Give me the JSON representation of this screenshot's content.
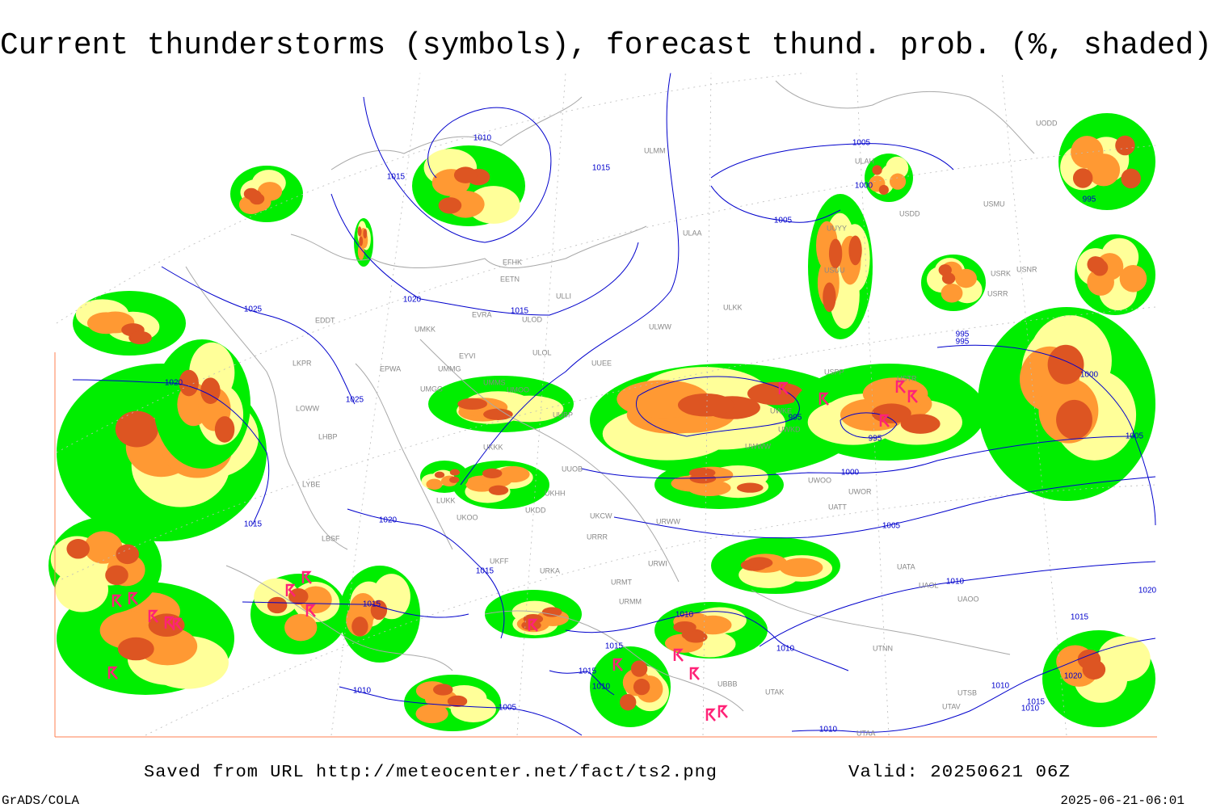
{
  "header": {
    "title": "Current thunderstorms (symbols), forecast thund. prob. (%, shaded)"
  },
  "isobars": [
    "1010",
    "1015",
    "1015",
    "1005",
    "1000",
    "1005",
    "995",
    "1025",
    "1020",
    "1015",
    "995",
    "995",
    "1020",
    "1025",
    "1000",
    "995",
    "995",
    "1005",
    "1000",
    "1020",
    "1015",
    "1005",
    "1015",
    "1010",
    "1015",
    "1010",
    "1015",
    "1015",
    "1010",
    "1020",
    "1015",
    "1010",
    "1010",
    "1010",
    "1015",
    "1010",
    "1005",
    "1010",
    "1020"
  ],
  "stations": [
    "ULMM",
    "ULAA",
    "EFHK",
    "EETN",
    "EVRA",
    "ULOD",
    "ULLI",
    "ULWW",
    "ULOL",
    "EYVI",
    "UMKK",
    "EPWA",
    "UMMG",
    "EDDT",
    "LKPR",
    "UMMS",
    "UMOO",
    "UUEE",
    "UUBP",
    "UMGG",
    "LOWW",
    "LHBP",
    "UKKK",
    "UUOB",
    "LYBE",
    "ULKK",
    "USPP",
    "USTR",
    "UWKE",
    "UUYY",
    "ULAH",
    "USDD",
    "USMU",
    "UODD",
    "USRK",
    "USNR",
    "USRR",
    "UKHH",
    "UKDD",
    "UKOO",
    "UKCW",
    "URWW",
    "UWOO",
    "UWOR",
    "UATT",
    "URRR",
    "URWI",
    "URMT",
    "URMM",
    "UKFF",
    "URKA",
    "UBBB",
    "UTAK",
    "UTNN",
    "UAOO",
    "UAOL",
    "UATA",
    "UTSB",
    "UTAV",
    "UTAA",
    "LBSF",
    "LUKK",
    "UWKD",
    "UWWW",
    "USUU"
  ],
  "footer": {
    "saved": "Saved from URL http://meteocenter.net/fact/ts2.png",
    "valid": "Valid: 20250621 06Z",
    "credit": "GrADS/COLA",
    "timestamp": "2025-06-21-06:01"
  }
}
